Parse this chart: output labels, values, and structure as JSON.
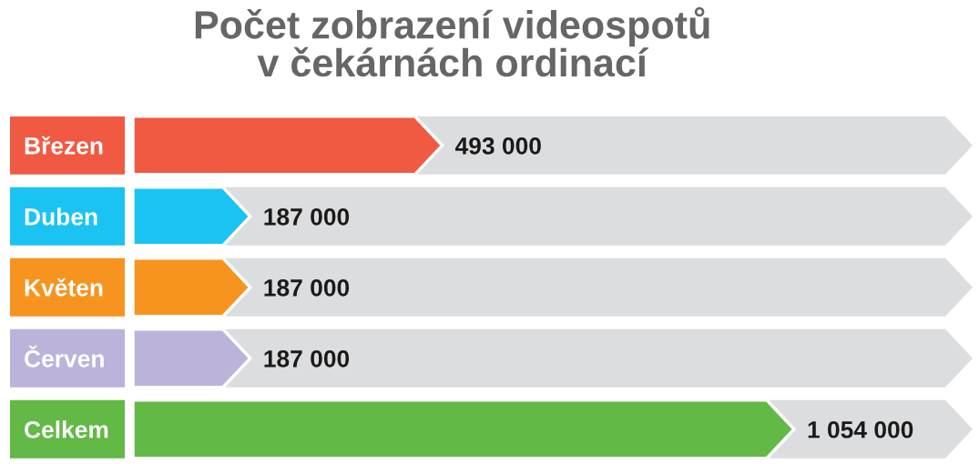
{
  "chart_data": {
    "type": "bar",
    "orientation": "horizontal",
    "title": "Počet zobrazení videospotů\nv čekárnách ordinací",
    "categories": [
      "Březen",
      "Duben",
      "Květen",
      "Červen",
      "Celkem"
    ],
    "values": [
      493000,
      187000,
      187000,
      187000,
      1054000
    ],
    "colors": [
      "#f15a42",
      "#1bc3f2",
      "#f6941f",
      "#bbb3da",
      "#62b946"
    ],
    "value_labels": [
      "493 000",
      "187 000",
      "187 000",
      "187 000",
      "1 054 000"
    ]
  }
}
